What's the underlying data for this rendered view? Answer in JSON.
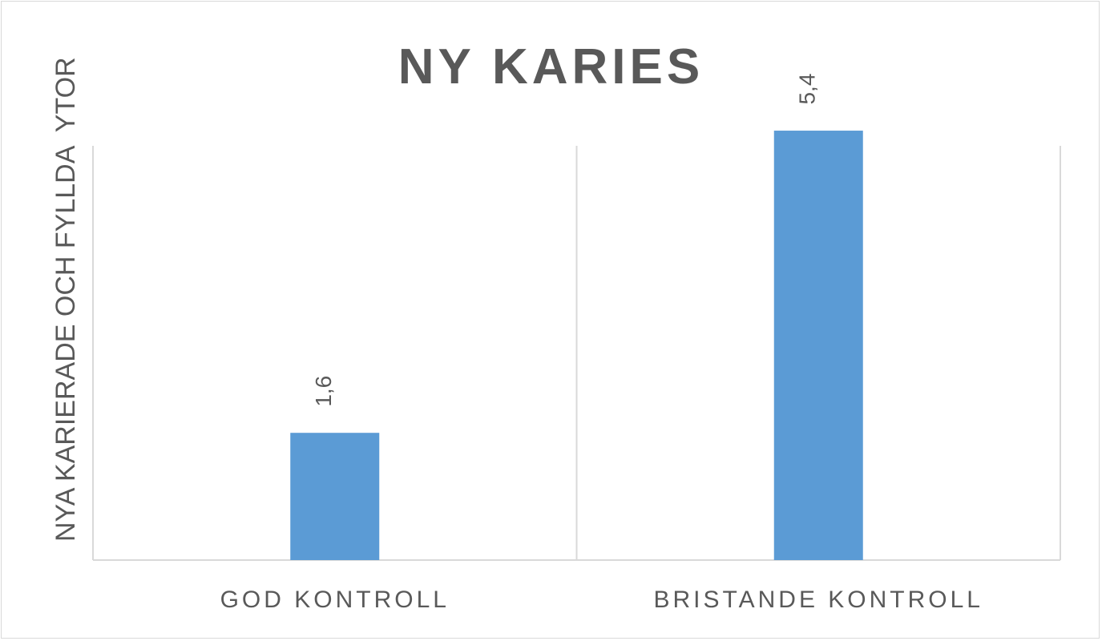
{
  "chart_data": {
    "type": "bar",
    "title": "NY KARIES",
    "xlabel": "",
    "ylabel": "NYA KARIERADE OCH FYLLDA  YTOR",
    "categories": [
      "GOD KONTROLL",
      "BRISTANDE KONTROLL"
    ],
    "values": [
      1.6,
      5.4
    ],
    "data_labels": [
      "1,6",
      "5,4"
    ],
    "ylim": [
      0,
      6
    ],
    "bar_color": "#5B9BD5",
    "grid": false,
    "legend": "none"
  }
}
